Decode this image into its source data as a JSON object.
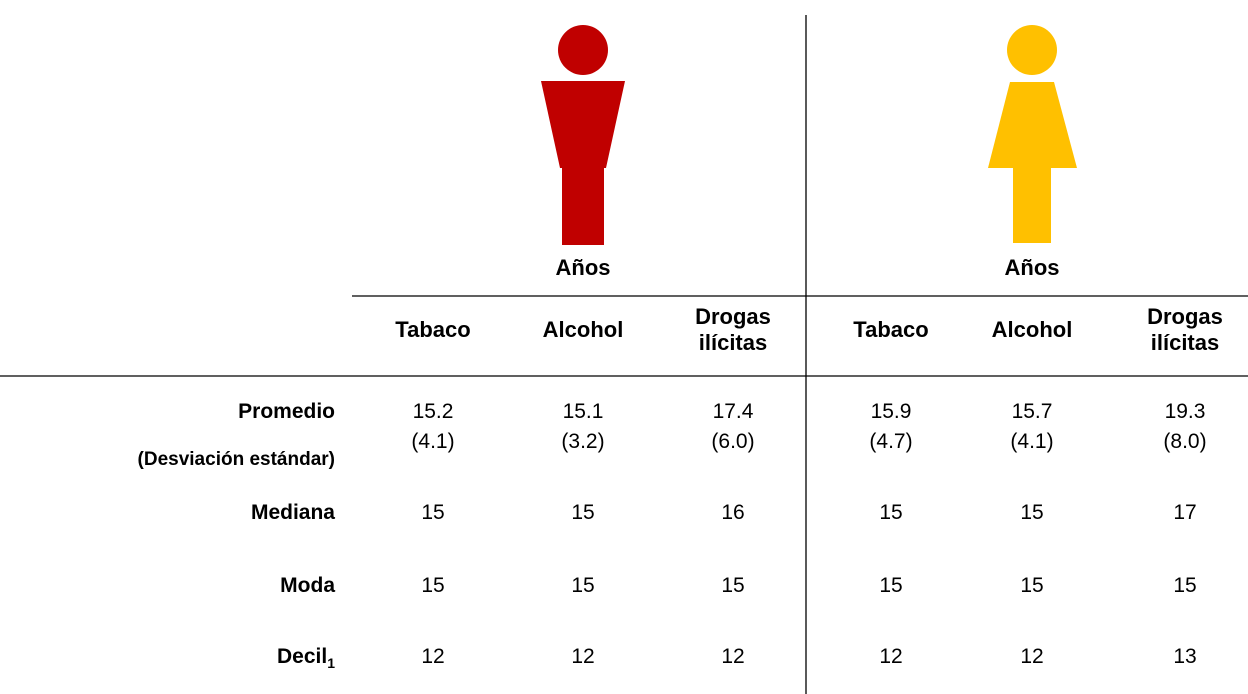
{
  "groups": [
    {
      "label": "Años",
      "columns": [
        "Tabaco",
        "Alcohol",
        "Drogas ilícitas"
      ]
    },
    {
      "label": "Años",
      "columns": [
        "Tabaco",
        "Alcohol",
        "Drogas ilícitas"
      ]
    }
  ],
  "rows": [
    {
      "label": "Promedio",
      "sublabel": "(Desviación estándar)",
      "values": [
        15.2,
        15.1,
        17.4,
        15.9,
        15.7,
        19.3
      ],
      "sub_values": [
        "(4.1)",
        "(3.2)",
        "(6.0)",
        "(4.7)",
        "(4.1)",
        "(8.0)"
      ]
    },
    {
      "label": "Mediana",
      "values": [
        15,
        15,
        16,
        15,
        15,
        17
      ]
    },
    {
      "label": "Moda",
      "values": [
        15,
        15,
        15,
        15,
        15,
        15
      ]
    },
    {
      "label": "Decil",
      "subscript": "1",
      "values": [
        12,
        12,
        12,
        12,
        12,
        13
      ]
    }
  ]
}
